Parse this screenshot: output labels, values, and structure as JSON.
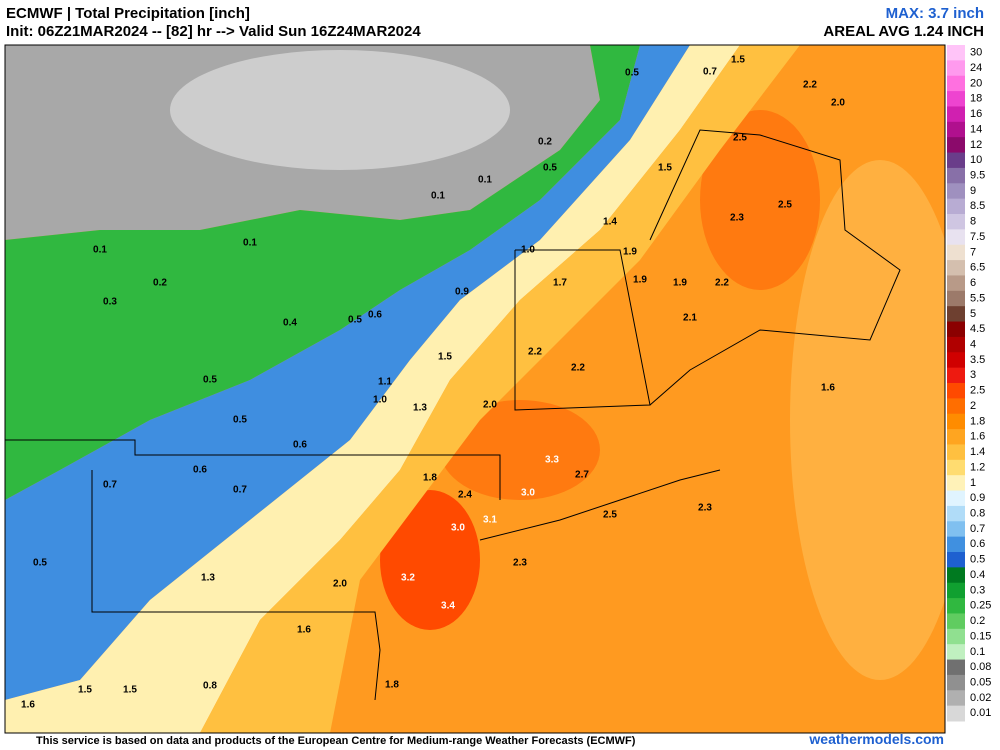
{
  "header": {
    "title": "ECMWF | Total Precipitation [inch]",
    "init": "Init: 06Z21MAR2024 -- [82] hr --> Valid Sun 16Z24MAR2024",
    "max": "MAX: 3.7 inch",
    "areal_avg": "AREAL AVG 1.24 INCH"
  },
  "map": {
    "labels": [
      "0.5",
      "0.7",
      "1.5",
      "2.2",
      "2.0",
      "2.5",
      "2.5",
      "2.3",
      "1.5",
      "1.4",
      "1.9",
      "1.9",
      "1.9",
      "2.2",
      "2.1",
      "1.6",
      "0.2",
      "0.5",
      "0.1",
      "0.1",
      "0.1",
      "0.1",
      "0.2",
      "0.3",
      "0.4",
      "0.5",
      "0.6",
      "0.9",
      "1.0",
      "1.7",
      "2.2",
      "2.2",
      "1.5",
      "1.1",
      "1.0",
      "1.3",
      "2.0",
      "0.5",
      "0.5",
      "0.6",
      "0.6",
      "0.7",
      "0.7",
      "0.5",
      "1.8",
      "2.4",
      "3.3",
      "2.7",
      "3.0",
      "3.0",
      "3.1",
      "3.2",
      "3.4",
      "2.3",
      "2.0",
      "1.6",
      "1.3",
      "1.5",
      "1.5",
      "0.8",
      "1.6",
      "1.8",
      "2.5",
      "2.3"
    ]
  },
  "legend": {
    "levels": [
      {
        "value": 30,
        "color": "#ffc4f8"
      },
      {
        "value": 24,
        "color": "#ff9aee"
      },
      {
        "value": 20,
        "color": "#ff70e0"
      },
      {
        "value": 18,
        "color": "#ee44d0"
      },
      {
        "value": 16,
        "color": "#d020b0"
      },
      {
        "value": 14,
        "color": "#b0108e"
      },
      {
        "value": 12,
        "color": "#8b0a6b"
      },
      {
        "value": 10,
        "color": "#6a3d8a"
      },
      {
        "value": 9.5,
        "color": "#8870a8"
      },
      {
        "value": 9,
        "color": "#9f90bf"
      },
      {
        "value": 8.5,
        "color": "#b8acd3"
      },
      {
        "value": 8,
        "color": "#cfc6e2"
      },
      {
        "value": 7.5,
        "color": "#e8e2f0"
      },
      {
        "value": 7,
        "color": "#eee0d0"
      },
      {
        "value": 6.5,
        "color": "#d4bfae"
      },
      {
        "value": 6,
        "color": "#b89a88"
      },
      {
        "value": 5.5,
        "color": "#9c7a6a"
      },
      {
        "value": 5,
        "color": "#6e4030"
      },
      {
        "value": 4.5,
        "color": "#8b0000"
      },
      {
        "value": 4,
        "color": "#b00000"
      },
      {
        "value": 3.5,
        "color": "#d00000"
      },
      {
        "value": 3,
        "color": "#ee1a10"
      },
      {
        "value": 2.5,
        "color": "#ff4a00"
      },
      {
        "value": 2,
        "color": "#ff6e00"
      },
      {
        "value": 1.8,
        "color": "#ff8c00"
      },
      {
        "value": 1.6,
        "color": "#ffa520"
      },
      {
        "value": 1.4,
        "color": "#ffc040"
      },
      {
        "value": 1.2,
        "color": "#ffdc70"
      },
      {
        "value": 1,
        "color": "#fff2b8"
      },
      {
        "value": 0.9,
        "color": "#e0f4ff"
      },
      {
        "value": 0.8,
        "color": "#b0dcf8"
      },
      {
        "value": 0.7,
        "color": "#80c0f0"
      },
      {
        "value": 0.6,
        "color": "#4090e0"
      },
      {
        "value": 0.5,
        "color": "#1e60d0"
      },
      {
        "value": 0.4,
        "color": "#007a20"
      },
      {
        "value": 0.3,
        "color": "#10a030"
      },
      {
        "value": 0.25,
        "color": "#30b840"
      },
      {
        "value": 0.2,
        "color": "#60cc60"
      },
      {
        "value": 0.15,
        "color": "#90e090"
      },
      {
        "value": 0.1,
        "color": "#c0f0c0"
      },
      {
        "value": 0.08,
        "color": "#707070"
      },
      {
        "value": 0.05,
        "color": "#909090"
      },
      {
        "value": 0.02,
        "color": "#b0b0b0"
      },
      {
        "value": 0.01,
        "color": "#d8d8d8"
      }
    ]
  },
  "footer": {
    "disclaimer": "This service is based on data and products of the European Centre for Medium-range Weather Forecasts (ECMWF)",
    "site": "weathermodels.com"
  }
}
